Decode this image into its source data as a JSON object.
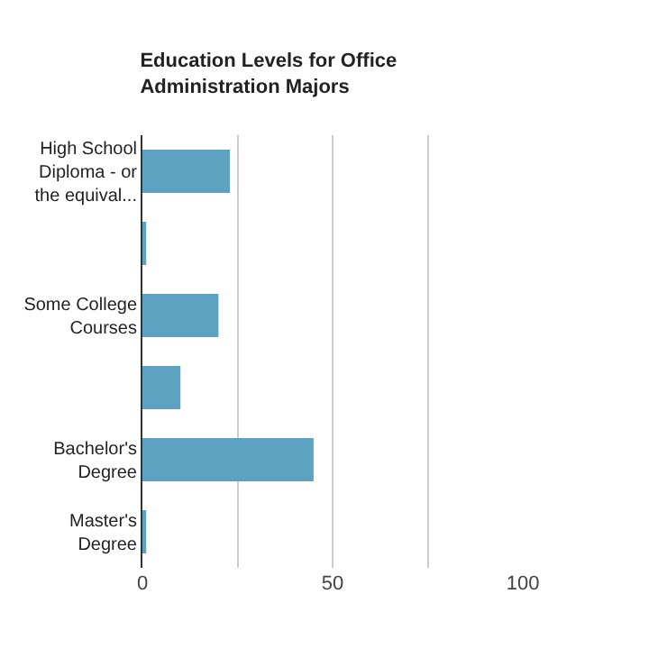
{
  "chart_data": {
    "type": "bar",
    "orientation": "horizontal",
    "title": "Education Levels for Office Administration Majors",
    "categories": [
      "High School Diploma - or the equival...",
      null,
      "Some College Courses",
      null,
      "Bachelor's Degree",
      "Master's Degree"
    ],
    "values": [
      23,
      1,
      20,
      10,
      45,
      1
    ],
    "color": "#5ba3c0",
    "xlim": [
      0,
      100
    ],
    "xticks": [
      0,
      {
        "value": 25,
        "label": null
      },
      50,
      {
        "value": 75,
        "label": null
      },
      100
    ],
    "grid": "x",
    "legend": false
  }
}
